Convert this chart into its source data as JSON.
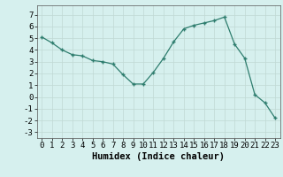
{
  "xlabel": "Humidex (Indice chaleur)",
  "x": [
    0,
    1,
    2,
    3,
    4,
    5,
    6,
    7,
    8,
    9,
    10,
    11,
    12,
    13,
    14,
    15,
    16,
    17,
    18,
    19,
    20,
    21,
    22,
    23
  ],
  "y": [
    5.1,
    4.6,
    4.0,
    3.6,
    3.5,
    3.1,
    3.0,
    2.8,
    1.9,
    1.1,
    1.1,
    2.1,
    3.3,
    4.7,
    5.8,
    6.1,
    6.3,
    6.5,
    6.8,
    4.5,
    3.3,
    0.2,
    -0.5,
    -1.8
  ],
  "ylim": [
    -3.5,
    7.8
  ],
  "xlim": [
    -0.5,
    23.5
  ],
  "line_color": "#2e7d6e",
  "marker": "+",
  "bg_color": "#d6f0ee",
  "grid_color": "#c0d8d4",
  "tick_label_fontsize": 6.5,
  "xlabel_fontsize": 7.5,
  "yticks": [
    -3,
    -2,
    -1,
    0,
    1,
    2,
    3,
    4,
    5,
    6,
    7
  ],
  "xticks": [
    0,
    1,
    2,
    3,
    4,
    5,
    6,
    7,
    8,
    9,
    10,
    11,
    12,
    13,
    14,
    15,
    16,
    17,
    18,
    19,
    20,
    21,
    22,
    23
  ]
}
